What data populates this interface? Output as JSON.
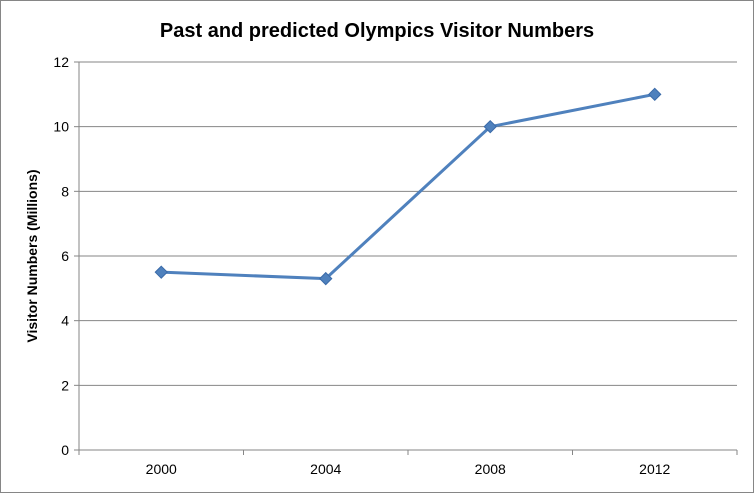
{
  "chart_data": {
    "type": "line",
    "title": "Past and predicted Olympics Visitor Numbers",
    "xlabel": "",
    "ylabel": "Visitor Numbers (Millions)",
    "categories": [
      "2000",
      "2004",
      "2008",
      "2012"
    ],
    "series": [
      {
        "values": [
          5.5,
          5.3,
          10,
          11
        ]
      }
    ],
    "ylim": [
      0,
      12
    ],
    "yticks": [
      0,
      2,
      4,
      6,
      8,
      10,
      12
    ],
    "grid": true,
    "legend": "none",
    "line_color": "#4F81BD",
    "marker": "diamond"
  }
}
